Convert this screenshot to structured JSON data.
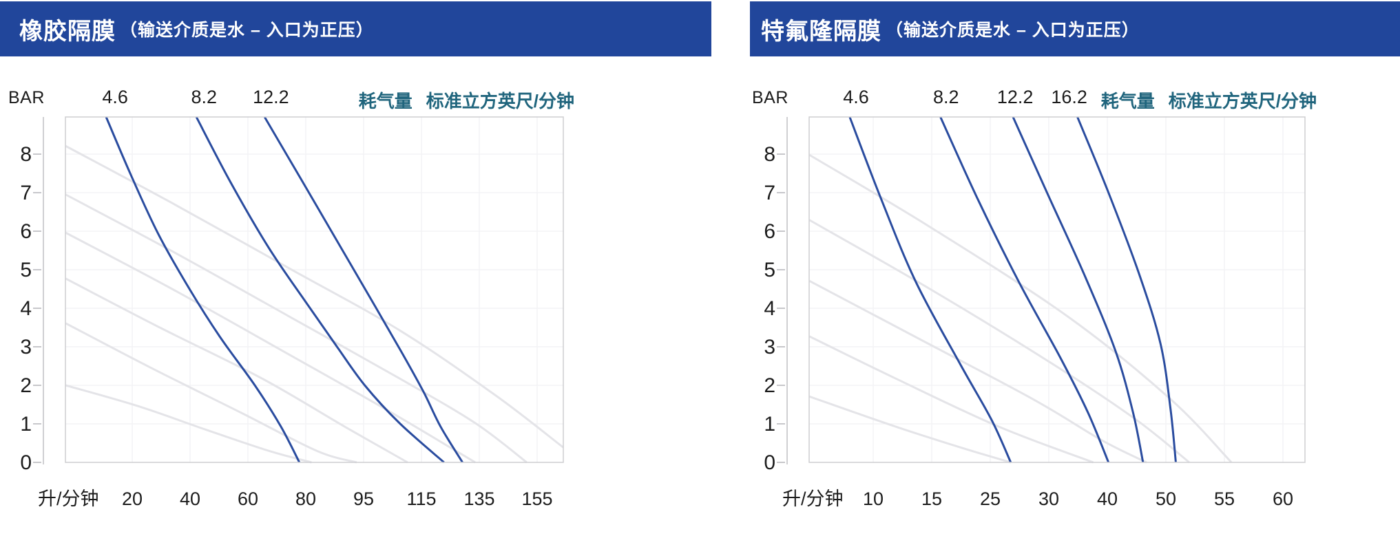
{
  "page": {
    "background": "#ffffff"
  },
  "colors": {
    "banner_bg": "#21469b",
    "banner_text": "#ffffff",
    "curve_blue": "#2a4c9f",
    "curve_gray": "#e4e4e8",
    "plot_border": "#cdcdd1",
    "grid_line": "#f3f3f5",
    "axis_line": "#bfbfc3",
    "tick_dash": "#c7c7cb",
    "tick_text": "#1c1c1c",
    "legend_teal": "#20657d"
  },
  "chart_data": [
    {
      "type": "line",
      "title": "橡胶隔膜",
      "title_suffix": "（输送介质是水 – 入口为正压）",
      "y_axis": {
        "label": "BAR",
        "ticks": [
          8,
          7,
          6,
          5,
          4,
          3,
          2,
          1,
          0
        ],
        "range": [
          0,
          8.96
        ],
        "grid": true
      },
      "x_axis": {
        "label": "升/分钟",
        "tick_labels": [
          "20",
          "40",
          "60",
          "80",
          "95",
          "115",
          "135",
          "155"
        ],
        "scale_note": "ticks equally spaced",
        "grid": true
      },
      "air_legend": {
        "label": "耗气量",
        "unit": "标准立方英尺/分钟",
        "position": "top-right"
      },
      "series": [
        {
          "name": "air-consumption-4.6",
          "label": "4.6",
          "unit": "SCFM",
          "style": "blue",
          "points_t_bar": [
            [
              -0.45,
              8.96
            ],
            [
              -0.02,
              7.45
            ],
            [
              0.45,
              5.93
            ],
            [
              0.99,
              4.5
            ],
            [
              1.52,
              3.25
            ],
            [
              2.12,
              2.0
            ],
            [
              2.57,
              0.93
            ],
            [
              2.89,
              0
            ]
          ]
        },
        {
          "name": "air-consumption-8.2",
          "label": "8.2",
          "unit": "SCFM",
          "style": "blue",
          "points_t_bar": [
            [
              1.11,
              8.96
            ],
            [
              1.7,
              7.27
            ],
            [
              2.36,
              5.57
            ],
            [
              3.01,
              4.14
            ],
            [
              3.55,
              2.98
            ],
            [
              4.02,
              2.0
            ],
            [
              4.62,
              1.02
            ],
            [
              5.39,
              0
            ]
          ]
        },
        {
          "name": "air-consumption-12.2",
          "label": "12.2",
          "unit": "SCFM",
          "style": "blue",
          "points_t_bar": [
            [
              2.29,
              8.96
            ],
            [
              2.95,
              7.27
            ],
            [
              3.61,
              5.57
            ],
            [
              4.2,
              4.05
            ],
            [
              4.68,
              2.8
            ],
            [
              5.04,
              1.82
            ],
            [
              5.33,
              0.93
            ],
            [
              5.71,
              0
            ]
          ]
        }
      ],
      "reference_curves": [
        {
          "name": "ref-curve-1",
          "style": "gray",
          "points_t_bar": [
            [
              -1.15,
              8.21
            ],
            [
              0.69,
              6.73
            ],
            [
              2.71,
              5.04
            ],
            [
              4.62,
              3.43
            ],
            [
              6.29,
              1.73
            ],
            [
              7.45,
              0.39
            ]
          ]
        },
        {
          "name": "ref-curve-2",
          "style": "gray",
          "points_t_bar": [
            [
              -1.15,
              6.95
            ],
            [
              0.69,
              5.48
            ],
            [
              2.71,
              3.79
            ],
            [
              4.62,
              2.18
            ],
            [
              5.93,
              1.02
            ],
            [
              6.82,
              0
            ]
          ]
        },
        {
          "name": "ref-curve-3",
          "style": "gray",
          "points_t_bar": [
            [
              -1.15,
              5.96
            ],
            [
              0.69,
              4.5
            ],
            [
              2.71,
              2.8
            ],
            [
              4.38,
              1.38
            ],
            [
              5.93,
              0
            ]
          ]
        },
        {
          "name": "ref-curve-4",
          "style": "gray",
          "points_t_bar": [
            [
              -1.15,
              4.77
            ],
            [
              0.45,
              3.52
            ],
            [
              2.24,
              2.18
            ],
            [
              3.67,
              0.93
            ],
            [
              4.76,
              0
            ]
          ]
        },
        {
          "name": "ref-curve-5",
          "style": "gray",
          "points_t_bar": [
            [
              -1.15,
              3.61
            ],
            [
              0.33,
              2.45
            ],
            [
              1.88,
              1.29
            ],
            [
              3.19,
              0.3
            ],
            [
              3.88,
              0
            ]
          ]
        },
        {
          "name": "ref-curve-6",
          "style": "gray",
          "points_t_bar": [
            [
              -1.15,
              2.0
            ],
            [
              0.1,
              1.46
            ],
            [
              1.29,
              0.84
            ],
            [
              2.36,
              0.3
            ],
            [
              3.1,
              0
            ]
          ]
        }
      ]
    },
    {
      "type": "line",
      "title": "特氟隆隔膜",
      "title_suffix": "（输送介质是水 – 入口为正压）",
      "y_axis": {
        "label": "BAR",
        "ticks": [
          8,
          7,
          6,
          5,
          4,
          3,
          2,
          1,
          0
        ],
        "range": [
          0,
          8.96
        ],
        "grid": true
      },
      "x_axis": {
        "label": "升/分钟",
        "tick_labels": [
          "10",
          "15",
          "25",
          "30",
          "40",
          "50",
          "55",
          "60"
        ],
        "scale_note": "ticks equally spaced",
        "grid": true
      },
      "air_legend": {
        "label": "耗气量",
        "unit": "标准立方英尺/分钟",
        "position": "top-right"
      },
      "series": [
        {
          "name": "air-consumption-4.6",
          "label": "4.6",
          "unit": "SCFM",
          "style": "blue",
          "points_t_bar": [
            [
              -0.4,
              8.96
            ],
            [
              0.14,
              6.82
            ],
            [
              0.73,
              4.68
            ],
            [
              1.49,
              2.54
            ],
            [
              2.02,
              1.11
            ],
            [
              2.35,
              0
            ]
          ]
        },
        {
          "name": "air-consumption-8.2",
          "label": "8.2",
          "unit": "SCFM",
          "style": "blue",
          "points_t_bar": [
            [
              1.15,
              8.96
            ],
            [
              1.79,
              6.82
            ],
            [
              2.49,
              4.68
            ],
            [
              3.2,
              2.71
            ],
            [
              3.67,
              1.29
            ],
            [
              4.02,
              0
            ]
          ]
        },
        {
          "name": "air-consumption-12.2",
          "label": "12.2",
          "unit": "SCFM",
          "style": "blue",
          "points_t_bar": [
            [
              2.39,
              8.96
            ],
            [
              2.97,
              7.0
            ],
            [
              3.61,
              4.86
            ],
            [
              4.14,
              2.89
            ],
            [
              4.44,
              1.29
            ],
            [
              4.61,
              0
            ]
          ]
        },
        {
          "name": "air-consumption-16.2",
          "label": "16.2",
          "unit": "SCFM",
          "style": "blue",
          "points_t_bar": [
            [
              3.49,
              8.96
            ],
            [
              4.02,
              7.0
            ],
            [
              4.55,
              4.86
            ],
            [
              4.91,
              3.07
            ],
            [
              5.08,
              1.38
            ],
            [
              5.17,
              0
            ]
          ]
        }
      ],
      "reference_curves": [
        {
          "name": "ref-curve-1",
          "style": "gray",
          "points_t_bar": [
            [
              -1.09,
              7.98
            ],
            [
              0.97,
              6.11
            ],
            [
              3.32,
              3.79
            ],
            [
              5.08,
              1.64
            ],
            [
              6.12,
              0
            ]
          ]
        },
        {
          "name": "ref-curve-2",
          "style": "gray",
          "points_t_bar": [
            [
              -1.09,
              6.29
            ],
            [
              0.97,
              4.5
            ],
            [
              3.08,
              2.54
            ],
            [
              4.49,
              1.11
            ],
            [
              5.4,
              0
            ]
          ]
        },
        {
          "name": "ref-curve-3",
          "style": "gray",
          "points_t_bar": [
            [
              -1.09,
              4.71
            ],
            [
              0.73,
              3.25
            ],
            [
              2.73,
              1.64
            ],
            [
              3.91,
              0.57
            ],
            [
              4.67,
              0
            ]
          ]
        },
        {
          "name": "ref-curve-4",
          "style": "gray",
          "points_t_bar": [
            [
              -1.09,
              3.27
            ],
            [
              0.38,
              2.18
            ],
            [
              2.14,
              0.93
            ],
            [
              3.76,
              0
            ]
          ]
        },
        {
          "name": "ref-curve-5",
          "style": "gray",
          "points_t_bar": [
            [
              -1.09,
              1.71
            ],
            [
              0.38,
              0.93
            ],
            [
              1.55,
              0.36
            ],
            [
              2.35,
              0
            ]
          ]
        }
      ]
    }
  ]
}
